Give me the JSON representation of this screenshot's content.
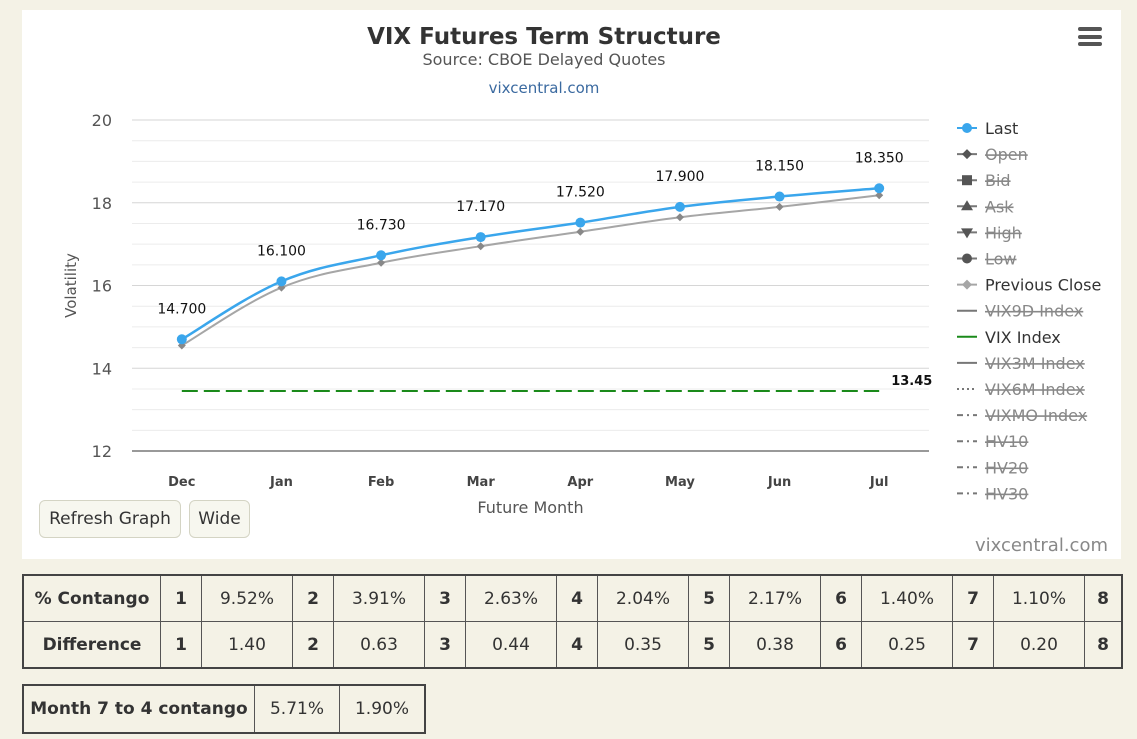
{
  "chart_data": {
    "type": "line",
    "title": "VIX Futures Term Structure",
    "subtitle": "Source: CBOE Delayed Quotes",
    "link": "vixcentral.com",
    "xlabel": "Future Month",
    "ylabel": "Volatility",
    "categories": [
      "Dec",
      "Jan",
      "Feb",
      "Mar",
      "Apr",
      "May",
      "Jun",
      "Jul"
    ],
    "ylim": [
      12,
      20
    ],
    "yticks": [
      "12",
      "14",
      "16",
      "18",
      "20"
    ],
    "grid": true,
    "legend_position": "right",
    "series": [
      {
        "name": "Last",
        "values": [
          14.7,
          16.1,
          16.73,
          17.17,
          17.52,
          17.9,
          18.15,
          18.35
        ],
        "labels": [
          "14.700",
          "16.100",
          "16.730",
          "17.170",
          "17.520",
          "17.900",
          "18.150",
          "18.350"
        ],
        "color": "#3aa6ec"
      },
      {
        "name": "Previous Close",
        "values": [
          14.55,
          15.95,
          16.55,
          16.95,
          17.3,
          17.65,
          17.9,
          18.18
        ],
        "color": "#a6a6a6"
      },
      {
        "name": "VIX Index",
        "values": [
          13.45,
          13.45,
          13.45,
          13.45,
          13.45,
          13.45,
          13.45,
          13.45
        ],
        "end_label": "13.45",
        "color": "#1a8a1a"
      }
    ],
    "legend": [
      {
        "name": "Last",
        "symbol": "circle",
        "color": "#3aa6ec",
        "hidden": false
      },
      {
        "name": "Open",
        "symbol": "diamond",
        "color": "#555555",
        "hidden": true
      },
      {
        "name": "Bid",
        "symbol": "square",
        "color": "#555555",
        "hidden": true
      },
      {
        "name": "Ask",
        "symbol": "triangle",
        "color": "#555555",
        "hidden": true
      },
      {
        "name": "High",
        "symbol": "triangle-down",
        "color": "#555555",
        "hidden": true
      },
      {
        "name": "Low",
        "symbol": "circle",
        "color": "#555555",
        "hidden": true
      },
      {
        "name": "Previous Close",
        "symbol": "diamond",
        "color": "#a6a6a6",
        "hidden": false
      },
      {
        "name": "VIX9D Index",
        "symbol": "line",
        "color": "#777777",
        "hidden": true
      },
      {
        "name": "VIX Index",
        "symbol": "line",
        "color": "#1a8a1a",
        "hidden": false
      },
      {
        "name": "VIX3M Index",
        "symbol": "line",
        "color": "#777777",
        "hidden": true
      },
      {
        "name": "VIX6M Index",
        "symbol": "dotted",
        "color": "#777777",
        "hidden": true
      },
      {
        "name": "VIXMO Index",
        "symbol": "dashdot",
        "color": "#777777",
        "hidden": true
      },
      {
        "name": "HV10",
        "symbol": "dashdot",
        "color": "#777777",
        "hidden": true
      },
      {
        "name": "HV20",
        "symbol": "dashdot",
        "color": "#777777",
        "hidden": true
      },
      {
        "name": "HV30",
        "symbol": "dashdot",
        "color": "#777777",
        "hidden": true
      }
    ]
  },
  "buttons": {
    "refresh": "Refresh Graph",
    "wide": "Wide"
  },
  "credit": "vixcentral.com",
  "contango_table": {
    "rows": [
      {
        "header": "% Contango",
        "cells": [
          "1",
          "9.52%",
          "2",
          "3.91%",
          "3",
          "2.63%",
          "4",
          "2.04%",
          "5",
          "2.17%",
          "6",
          "1.40%",
          "7",
          "1.10%",
          "8"
        ]
      },
      {
        "header": "Difference",
        "cells": [
          "1",
          "1.40",
          "2",
          "0.63",
          "3",
          "0.44",
          "4",
          "0.35",
          "5",
          "0.38",
          "6",
          "0.25",
          "7",
          "0.20",
          "8"
        ]
      }
    ]
  },
  "month7to4": {
    "header": "Month 7 to 4 contango",
    "values": [
      "5.71%",
      "1.90%"
    ]
  }
}
